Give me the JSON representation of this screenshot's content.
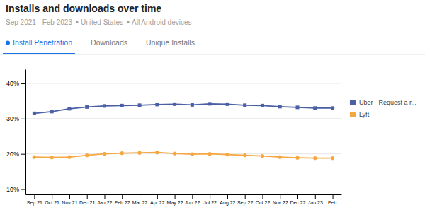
{
  "chart_data": {
    "type": "line",
    "title": "Installs and downloads over time",
    "subtitle": [
      "Sep 2021 - Feb 2023",
      "United States",
      "All Android devices"
    ],
    "annotations": [
      "Install Penetration",
      "Downloads",
      "Unique Installs"
    ],
    "categories": [
      "Sep 21",
      "Oct 21",
      "Nov 21",
      "Dec 21",
      "Jan 22",
      "Feb 22",
      "Mar 22",
      "Apr 22",
      "May 22",
      "Jun 22",
      "Jul 22",
      "Aug 22",
      "Sep 22",
      "Oct 22",
      "Nov 22",
      "Dec 22",
      "Jan 23",
      "Feb."
    ],
    "series": [
      {
        "name": "Uber - Request a r...",
        "color": "#4a5fa5",
        "marker": "square",
        "values": [
          0.315,
          0.32,
          0.328,
          0.333,
          0.336,
          0.337,
          0.338,
          0.34,
          0.341,
          0.339,
          0.342,
          0.341,
          0.338,
          0.337,
          0.334,
          0.332,
          0.33,
          0.33
        ]
      },
      {
        "name": "Lyft",
        "color": "#f5a742",
        "marker": "circle",
        "values": [
          0.191,
          0.19,
          0.191,
          0.196,
          0.2,
          0.202,
          0.203,
          0.204,
          0.201,
          0.199,
          0.2,
          0.198,
          0.196,
          0.194,
          0.191,
          0.189,
          0.188,
          0.188
        ]
      }
    ],
    "ylim": [
      0.085,
      0.44
    ],
    "yticks": [
      {
        "value": 0.1,
        "label": "10%"
      },
      {
        "value": 0.2,
        "label": "20%"
      },
      {
        "value": 0.3,
        "label": "30%"
      },
      {
        "value": 0.4,
        "label": "40%"
      }
    ],
    "grid": true,
    "legend": "right"
  }
}
